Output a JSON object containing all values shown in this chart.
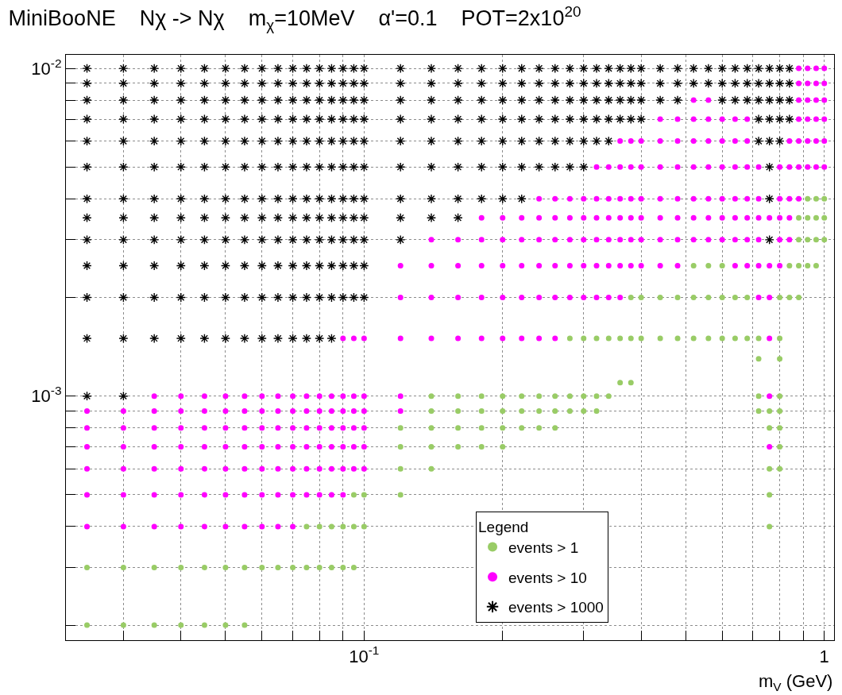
{
  "chart_data": {
    "type": "scatter",
    "title": "MiniBooNE    Nχ -> Nχ    m$_{χ}$=10MeV    α'=0.1    POT=2x10$^{20}$",
    "xlabel": "m$_{V}$ (GeV)",
    "legend_title": "Legend",
    "legend": "bottom",
    "grid": true,
    "log": "xy",
    "xlim": [
      0.0225,
      1.05
    ],
    "ylim": [
      0.00018,
      0.011
    ],
    "xticks": [
      {
        "value": 0.03,
        "label": null
      },
      {
        "value": 0.04,
        "label": null
      },
      {
        "value": 0.05,
        "label": null
      },
      {
        "value": 0.06,
        "label": null
      },
      {
        "value": 0.07,
        "label": null
      },
      {
        "value": 0.08,
        "label": null
      },
      {
        "value": 0.09,
        "label": null
      },
      {
        "value": 0.1,
        "label": "10$^{-1}$"
      },
      {
        "value": 0.2,
        "label": null
      },
      {
        "value": 0.3,
        "label": null
      },
      {
        "value": 0.4,
        "label": null
      },
      {
        "value": 0.5,
        "label": null
      },
      {
        "value": 0.6,
        "label": null
      },
      {
        "value": 0.7,
        "label": null
      },
      {
        "value": 0.8,
        "label": null
      },
      {
        "value": 0.9,
        "label": null
      },
      1
    ],
    "yticks": [
      {
        "value": 0.0002,
        "label": null
      },
      {
        "value": 0.0003,
        "label": null
      },
      {
        "value": 0.0004,
        "label": null
      },
      {
        "value": 0.0005,
        "label": null
      },
      {
        "value": 0.0006,
        "label": null
      },
      {
        "value": 0.0007,
        "label": null
      },
      {
        "value": 0.0008,
        "label": null
      },
      {
        "value": 0.0009,
        "label": null
      },
      {
        "value": 0.001,
        "label": "10$^{-3}$"
      },
      {
        "value": 0.002,
        "label": null
      },
      {
        "value": 0.003,
        "label": null
      },
      {
        "value": 0.004,
        "label": null
      },
      {
        "value": 0.005,
        "label": null
      },
      {
        "value": 0.006,
        "label": null
      },
      {
        "value": 0.007,
        "label": null
      },
      {
        "value": 0.008,
        "label": null
      },
      {
        "value": 0.009,
        "label": null
      },
      {
        "value": 0.01,
        "label": "10$^{-2}$"
      }
    ],
    "series": [
      {
        "name": "events > 1",
        "color": "#99cc66",
        "marker": "circle",
        "x": [
          0.92,
          0.96,
          1.0
        ],
        "values": [
          0.004,
          0.004,
          0.004
        ]
      },
      {
        "color": "#99cc66",
        "marker": "circle",
        "x": [
          0.88,
          0.92,
          0.96,
          1.0
        ],
        "values": [
          0.0035,
          0.0035,
          0.0035,
          0.0035
        ]
      },
      {
        "color": "#99cc66",
        "marker": "circle",
        "x": [
          0.88,
          0.92,
          0.96,
          1.0
        ],
        "values": [
          0.003,
          0.003,
          0.003,
          0.003
        ]
      },
      {
        "color": "#99cc66",
        "marker": "circle",
        "x": [
          0.52,
          0.56,
          0.6,
          0.84,
          0.88,
          0.92,
          0.96
        ],
        "values": [
          0.0025,
          0.0025,
          0.0025,
          0.0025,
          0.0025,
          0.0025,
          0.0025
        ]
      },
      {
        "color": "#99cc66",
        "marker": "circle",
        "x": [
          0.38,
          0.4,
          0.44,
          0.48,
          0.52,
          0.56,
          0.6,
          0.64,
          0.68,
          0.8,
          0.84,
          0.88
        ],
        "values": [
          0.002,
          0.002,
          0.002,
          0.002,
          0.002,
          0.002,
          0.002,
          0.002,
          0.002,
          0.002,
          0.002,
          0.002
        ]
      },
      {
        "color": "#99cc66",
        "marker": "circle",
        "x": [
          0.28,
          0.3,
          0.32,
          0.34,
          0.36,
          0.38,
          0.4,
          0.44,
          0.48,
          0.52,
          0.56,
          0.6,
          0.64,
          0.68,
          0.72,
          0.8
        ],
        "values": [
          0.0015,
          0.0015,
          0.0015,
          0.0015,
          0.0015,
          0.0015,
          0.0015,
          0.0015,
          0.0015,
          0.0015,
          0.0015,
          0.0015,
          0.0015,
          0.0015,
          0.0015,
          0.0015
        ]
      },
      {
        "color": "#99cc66",
        "marker": "circle",
        "x": [
          0.72,
          0.8
        ],
        "values": [
          0.0013,
          0.0013
        ]
      },
      {
        "color": "#99cc66",
        "marker": "circle",
        "x": [
          0.36,
          0.38
        ],
        "values": [
          0.0011,
          0.0011
        ]
      },
      {
        "color": "#99cc66",
        "marker": "circle",
        "x": [
          0.14,
          0.16,
          0.18,
          0.2,
          0.22,
          0.24,
          0.26,
          0.28,
          0.3,
          0.32,
          0.34,
          0.72,
          0.8
        ],
        "values": [
          0.001,
          0.001,
          0.001,
          0.001,
          0.001,
          0.001,
          0.001,
          0.001,
          0.001,
          0.001,
          0.001,
          0.001,
          0.001
        ]
      },
      {
        "color": "#99cc66",
        "marker": "circle",
        "x": [
          0.14,
          0.16,
          0.18,
          0.2,
          0.22,
          0.24,
          0.26,
          0.28,
          0.3,
          0.32,
          0.72,
          0.76,
          0.8
        ],
        "values": [
          0.0009,
          0.0009,
          0.0009,
          0.0009,
          0.0009,
          0.0009,
          0.0009,
          0.0009,
          0.0009,
          0.0009,
          0.0009,
          0.0009,
          0.0009
        ]
      },
      {
        "color": "#99cc66",
        "marker": "circle",
        "x": [
          0.12,
          0.14,
          0.16,
          0.18,
          0.2,
          0.22,
          0.24,
          0.26,
          0.76,
          0.8
        ],
        "values": [
          0.0008,
          0.0008,
          0.0008,
          0.0008,
          0.0008,
          0.0008,
          0.0008,
          0.0008,
          0.0008,
          0.0008
        ]
      },
      {
        "color": "#99cc66",
        "marker": "circle",
        "x": [
          0.12,
          0.14,
          0.16,
          0.18,
          0.2,
          0.8
        ],
        "values": [
          0.0007,
          0.0007,
          0.0007,
          0.0007,
          0.0007,
          0.0007
        ]
      },
      {
        "color": "#99cc66",
        "marker": "circle",
        "x": [
          0.12,
          0.14,
          0.76,
          0.8
        ],
        "values": [
          0.0006,
          0.0006,
          0.0006,
          0.0006
        ]
      },
      {
        "color": "#99cc66",
        "marker": "circle",
        "x": [
          0.095,
          0.1,
          0.12,
          0.76
        ],
        "values": [
          0.0005,
          0.0005,
          0.0005,
          0.0005
        ]
      },
      {
        "color": "#99cc66",
        "marker": "circle",
        "x": [
          0.075,
          0.08,
          0.085,
          0.09,
          0.095,
          0.1,
          0.76
        ],
        "values": [
          0.0004,
          0.0004,
          0.0004,
          0.0004,
          0.0004,
          0.0004,
          0.0004
        ]
      },
      {
        "color": "#99cc66",
        "marker": "circle",
        "x": [
          0.025,
          0.03,
          0.035,
          0.04,
          0.045,
          0.05,
          0.055,
          0.06,
          0.065,
          0.07,
          0.075,
          0.08,
          0.085,
          0.09,
          0.095
        ],
        "values": [
          0.0003,
          0.0003,
          0.0003,
          0.0003,
          0.0003,
          0.0003,
          0.0003,
          0.0003,
          0.0003,
          0.0003,
          0.0003,
          0.0003,
          0.0003,
          0.0003,
          0.0003
        ]
      },
      {
        "color": "#99cc66",
        "marker": "circle",
        "x": [
          0.025,
          0.03,
          0.035,
          0.04,
          0.045,
          0.05,
          0.055
        ],
        "values": [
          0.0002,
          0.0002,
          0.0002,
          0.0002,
          0.0002,
          0.0002,
          0.0002
        ]
      },
      {
        "name": "events > 10",
        "color": "#ff00ff",
        "marker": "circle",
        "x": [
          0.88,
          0.92,
          0.96,
          1.0
        ],
        "values": [
          0.01,
          0.01,
          0.01,
          0.01
        ]
      },
      {
        "color": "#ff00ff",
        "marker": "circle",
        "x": [
          0.88,
          0.92,
          0.96,
          1.0
        ],
        "values": [
          0.009,
          0.009,
          0.009,
          0.009
        ]
      },
      {
        "color": "#ff00ff",
        "marker": "circle",
        "x": [
          0.52,
          0.56,
          0.88,
          0.92,
          0.96,
          1.0
        ],
        "values": [
          0.008,
          0.008,
          0.008,
          0.008,
          0.008,
          0.008
        ]
      },
      {
        "color": "#ff00ff",
        "marker": "circle",
        "x": [
          0.44,
          0.48,
          0.52,
          0.56,
          0.6,
          0.64,
          0.68,
          0.88,
          0.92,
          0.96,
          1.0
        ],
        "values": [
          0.007,
          0.007,
          0.007,
          0.007,
          0.007,
          0.007,
          0.007,
          0.007,
          0.007,
          0.007,
          0.007
        ]
      },
      {
        "color": "#ff00ff",
        "marker": "circle",
        "x": [
          0.36,
          0.38,
          0.4,
          0.44,
          0.48,
          0.52,
          0.56,
          0.6,
          0.64,
          0.68,
          0.84,
          0.88,
          0.92,
          0.96,
          1.0
        ],
        "values": [
          0.006,
          0.006,
          0.006,
          0.006,
          0.006,
          0.006,
          0.006,
          0.006,
          0.006,
          0.006,
          0.006,
          0.006,
          0.006,
          0.006,
          0.006
        ]
      },
      {
        "color": "#ff00ff",
        "marker": "circle",
        "x": [
          0.32,
          0.34,
          0.36,
          0.38,
          0.4,
          0.44,
          0.48,
          0.52,
          0.56,
          0.6,
          0.64,
          0.68,
          0.72,
          0.8,
          0.84,
          0.88,
          0.92,
          0.96,
          1.0
        ],
        "values": [
          0.005,
          0.005,
          0.005,
          0.005,
          0.005,
          0.005,
          0.005,
          0.005,
          0.005,
          0.005,
          0.005,
          0.005,
          0.005,
          0.005,
          0.005,
          0.005,
          0.005,
          0.005,
          0.005
        ]
      },
      {
        "color": "#ff00ff",
        "marker": "circle",
        "x": [
          0.24,
          0.26,
          0.28,
          0.3,
          0.32,
          0.34,
          0.36,
          0.38,
          0.4,
          0.44,
          0.48,
          0.52,
          0.56,
          0.6,
          0.64,
          0.68,
          0.72,
          0.8,
          0.84,
          0.88
        ],
        "values": [
          0.004,
          0.004,
          0.004,
          0.004,
          0.004,
          0.004,
          0.004,
          0.004,
          0.004,
          0.004,
          0.004,
          0.004,
          0.004,
          0.004,
          0.004,
          0.004,
          0.004,
          0.004,
          0.004,
          0.004
        ]
      },
      {
        "color": "#ff00ff",
        "marker": "circle",
        "x": [
          0.18,
          0.2,
          0.22,
          0.24,
          0.26,
          0.28,
          0.3,
          0.32,
          0.34,
          0.36,
          0.38,
          0.4,
          0.44,
          0.48,
          0.52,
          0.56,
          0.6,
          0.64,
          0.68,
          0.72,
          0.76,
          0.8,
          0.84
        ],
        "values": [
          0.0035,
          0.0035,
          0.0035,
          0.0035,
          0.0035,
          0.0035,
          0.0035,
          0.0035,
          0.0035,
          0.0035,
          0.0035,
          0.0035,
          0.0035,
          0.0035,
          0.0035,
          0.0035,
          0.0035,
          0.0035,
          0.0035,
          0.0035,
          0.0035,
          0.0035,
          0.0035
        ]
      },
      {
        "color": "#ff00ff",
        "marker": "circle",
        "x": [
          0.14,
          0.16,
          0.18,
          0.2,
          0.22,
          0.24,
          0.26,
          0.28,
          0.3,
          0.32,
          0.34,
          0.36,
          0.38,
          0.4,
          0.44,
          0.48,
          0.52,
          0.56,
          0.6,
          0.64,
          0.68,
          0.72,
          0.8,
          0.84
        ],
        "values": [
          0.003,
          0.003,
          0.003,
          0.003,
          0.003,
          0.003,
          0.003,
          0.003,
          0.003,
          0.003,
          0.003,
          0.003,
          0.003,
          0.003,
          0.003,
          0.003,
          0.003,
          0.003,
          0.003,
          0.003,
          0.003,
          0.003,
          0.003,
          0.003
        ]
      },
      {
        "color": "#ff00ff",
        "marker": "circle",
        "x": [
          0.12,
          0.14,
          0.16,
          0.18,
          0.2,
          0.22,
          0.24,
          0.26,
          0.28,
          0.3,
          0.32,
          0.34,
          0.36,
          0.38,
          0.4,
          0.44,
          0.48,
          0.64,
          0.68,
          0.72,
          0.76,
          0.8
        ],
        "values": [
          0.0025,
          0.0025,
          0.0025,
          0.0025,
          0.0025,
          0.0025,
          0.0025,
          0.0025,
          0.0025,
          0.0025,
          0.0025,
          0.0025,
          0.0025,
          0.0025,
          0.0025,
          0.0025,
          0.0025,
          0.0025,
          0.0025,
          0.0025,
          0.0025,
          0.0025
        ]
      },
      {
        "color": "#ff00ff",
        "marker": "circle",
        "x": [
          0.12,
          0.14,
          0.16,
          0.18,
          0.2,
          0.22,
          0.24,
          0.26,
          0.28,
          0.3,
          0.32,
          0.34,
          0.36,
          0.72,
          0.76
        ],
        "values": [
          0.002,
          0.002,
          0.002,
          0.002,
          0.002,
          0.002,
          0.002,
          0.002,
          0.002,
          0.002,
          0.002,
          0.002,
          0.002,
          0.002,
          0.002
        ]
      },
      {
        "color": "#ff00ff",
        "marker": "circle",
        "x": [
          0.09,
          0.095,
          0.1,
          0.12,
          0.14,
          0.16,
          0.18,
          0.2,
          0.22,
          0.24,
          0.26,
          0.76
        ],
        "values": [
          0.0015,
          0.0015,
          0.0015,
          0.0015,
          0.0015,
          0.0015,
          0.0015,
          0.0015,
          0.0015,
          0.0015,
          0.0015,
          0.0015
        ]
      },
      {
        "color": "#ff00ff",
        "marker": "circle",
        "x": [
          0.035,
          0.04,
          0.045,
          0.05,
          0.055,
          0.06,
          0.065,
          0.07,
          0.075,
          0.08,
          0.085,
          0.09,
          0.095,
          0.1,
          0.12,
          0.76
        ],
        "values": [
          0.001,
          0.001,
          0.001,
          0.001,
          0.001,
          0.001,
          0.001,
          0.001,
          0.001,
          0.001,
          0.001,
          0.001,
          0.001,
          0.001,
          0.001,
          0.001
        ]
      },
      {
        "color": "#ff00ff",
        "marker": "circle",
        "x": [
          0.025,
          0.03,
          0.035,
          0.04,
          0.045,
          0.05,
          0.055,
          0.06,
          0.065,
          0.07,
          0.075,
          0.08,
          0.085,
          0.09,
          0.095,
          0.1,
          0.12
        ],
        "values": [
          0.0009,
          0.0009,
          0.0009,
          0.0009,
          0.0009,
          0.0009,
          0.0009,
          0.0009,
          0.0009,
          0.0009,
          0.0009,
          0.0009,
          0.0009,
          0.0009,
          0.0009,
          0.0009,
          0.0009
        ]
      },
      {
        "color": "#ff00ff",
        "marker": "circle",
        "x": [
          0.025,
          0.03,
          0.035,
          0.04,
          0.045,
          0.05,
          0.055,
          0.06,
          0.065,
          0.07,
          0.075,
          0.08,
          0.085,
          0.09,
          0.095,
          0.1
        ],
        "values": [
          0.0008,
          0.0008,
          0.0008,
          0.0008,
          0.0008,
          0.0008,
          0.0008,
          0.0008,
          0.0008,
          0.0008,
          0.0008,
          0.0008,
          0.0008,
          0.0008,
          0.0008,
          0.0008
        ]
      },
      {
        "color": "#ff00ff",
        "marker": "circle",
        "x": [
          0.025,
          0.03,
          0.035,
          0.04,
          0.045,
          0.05,
          0.055,
          0.06,
          0.065,
          0.07,
          0.075,
          0.08,
          0.085,
          0.09,
          0.095,
          0.1,
          0.76
        ],
        "values": [
          0.0007,
          0.0007,
          0.0007,
          0.0007,
          0.0007,
          0.0007,
          0.0007,
          0.0007,
          0.0007,
          0.0007,
          0.0007,
          0.0007,
          0.0007,
          0.0007,
          0.0007,
          0.0007,
          0.0007
        ]
      },
      {
        "color": "#ff00ff",
        "marker": "circle",
        "x": [
          0.025,
          0.03,
          0.035,
          0.04,
          0.045,
          0.05,
          0.055,
          0.06,
          0.065,
          0.07,
          0.075,
          0.08,
          0.085,
          0.09,
          0.095,
          0.1
        ],
        "values": [
          0.0006,
          0.0006,
          0.0006,
          0.0006,
          0.0006,
          0.0006,
          0.0006,
          0.0006,
          0.0006,
          0.0006,
          0.0006,
          0.0006,
          0.0006,
          0.0006,
          0.0006,
          0.0006
        ]
      },
      {
        "color": "#ff00ff",
        "marker": "circle",
        "x": [
          0.025,
          0.03,
          0.035,
          0.04,
          0.045,
          0.05,
          0.055,
          0.06,
          0.065,
          0.07,
          0.075,
          0.08,
          0.085,
          0.09
        ],
        "values": [
          0.0005,
          0.0005,
          0.0005,
          0.0005,
          0.0005,
          0.0005,
          0.0005,
          0.0005,
          0.0005,
          0.0005,
          0.0005,
          0.0005,
          0.0005,
          0.0005
        ]
      },
      {
        "color": "#ff00ff",
        "marker": "circle",
        "x": [
          0.025,
          0.03,
          0.035,
          0.04,
          0.045,
          0.05,
          0.055,
          0.06,
          0.065,
          0.07
        ],
        "values": [
          0.0004,
          0.0004,
          0.0004,
          0.0004,
          0.0004,
          0.0004,
          0.0004,
          0.0004,
          0.0004,
          0.0004
        ]
      },
      {
        "name": "events > 1000",
        "color": "#000000",
        "marker": "cross",
        "x": [
          0.025,
          0.03,
          0.035,
          0.04,
          0.045,
          0.05,
          0.055,
          0.06,
          0.065,
          0.07,
          0.075,
          0.08,
          0.085,
          0.09,
          0.095,
          0.1,
          0.12,
          0.14,
          0.16,
          0.18,
          0.2,
          0.22,
          0.24,
          0.26,
          0.28,
          0.3,
          0.32,
          0.34,
          0.36,
          0.38,
          0.4,
          0.44,
          0.48,
          0.52,
          0.56,
          0.6,
          0.64,
          0.68,
          0.72,
          0.76,
          0.8,
          0.84
        ],
        "values": [
          0.01,
          0.01,
          0.01,
          0.01,
          0.01,
          0.01,
          0.01,
          0.01,
          0.01,
          0.01,
          0.01,
          0.01,
          0.01,
          0.01,
          0.01,
          0.01,
          0.01,
          0.01,
          0.01,
          0.01,
          0.01,
          0.01,
          0.01,
          0.01,
          0.01,
          0.01,
          0.01,
          0.01,
          0.01,
          0.01,
          0.01,
          0.01,
          0.01,
          0.01,
          0.01,
          0.01,
          0.01,
          0.01,
          0.01,
          0.01,
          0.01,
          0.01
        ]
      },
      {
        "color": "#000000",
        "marker": "cross",
        "x": [
          0.025,
          0.03,
          0.035,
          0.04,
          0.045,
          0.05,
          0.055,
          0.06,
          0.065,
          0.07,
          0.075,
          0.08,
          0.085,
          0.09,
          0.095,
          0.1,
          0.12,
          0.14,
          0.16,
          0.18,
          0.2,
          0.22,
          0.24,
          0.26,
          0.28,
          0.3,
          0.32,
          0.34,
          0.36,
          0.38,
          0.4,
          0.44,
          0.48,
          0.52,
          0.56,
          0.6,
          0.64,
          0.68,
          0.72,
          0.76,
          0.8,
          0.84
        ],
        "values": [
          0.009,
          0.009,
          0.009,
          0.009,
          0.009,
          0.009,
          0.009,
          0.009,
          0.009,
          0.009,
          0.009,
          0.009,
          0.009,
          0.009,
          0.009,
          0.009,
          0.009,
          0.009,
          0.009,
          0.009,
          0.009,
          0.009,
          0.009,
          0.009,
          0.009,
          0.009,
          0.009,
          0.009,
          0.009,
          0.009,
          0.009,
          0.009,
          0.009,
          0.009,
          0.009,
          0.009,
          0.009,
          0.009,
          0.009,
          0.009,
          0.009,
          0.009
        ]
      },
      {
        "color": "#000000",
        "marker": "cross",
        "x": [
          0.025,
          0.03,
          0.035,
          0.04,
          0.045,
          0.05,
          0.055,
          0.06,
          0.065,
          0.07,
          0.075,
          0.08,
          0.085,
          0.09,
          0.095,
          0.1,
          0.12,
          0.14,
          0.16,
          0.18,
          0.2,
          0.22,
          0.24,
          0.26,
          0.28,
          0.3,
          0.32,
          0.34,
          0.36,
          0.38,
          0.4,
          0.44,
          0.48,
          0.6,
          0.64,
          0.68,
          0.72,
          0.76,
          0.8,
          0.84
        ],
        "values": [
          0.008,
          0.008,
          0.008,
          0.008,
          0.008,
          0.008,
          0.008,
          0.008,
          0.008,
          0.008,
          0.008,
          0.008,
          0.008,
          0.008,
          0.008,
          0.008,
          0.008,
          0.008,
          0.008,
          0.008,
          0.008,
          0.008,
          0.008,
          0.008,
          0.008,
          0.008,
          0.008,
          0.008,
          0.008,
          0.008,
          0.008,
          0.008,
          0.008,
          0.008,
          0.008,
          0.008,
          0.008,
          0.008,
          0.008,
          0.008
        ]
      },
      {
        "color": "#000000",
        "marker": "cross",
        "x": [
          0.025,
          0.03,
          0.035,
          0.04,
          0.045,
          0.05,
          0.055,
          0.06,
          0.065,
          0.07,
          0.075,
          0.08,
          0.085,
          0.09,
          0.095,
          0.1,
          0.12,
          0.14,
          0.16,
          0.18,
          0.2,
          0.22,
          0.24,
          0.26,
          0.28,
          0.3,
          0.32,
          0.34,
          0.36,
          0.38,
          0.4,
          0.72,
          0.76,
          0.8,
          0.84
        ],
        "values": [
          0.007,
          0.007,
          0.007,
          0.007,
          0.007,
          0.007,
          0.007,
          0.007,
          0.007,
          0.007,
          0.007,
          0.007,
          0.007,
          0.007,
          0.007,
          0.007,
          0.007,
          0.007,
          0.007,
          0.007,
          0.007,
          0.007,
          0.007,
          0.007,
          0.007,
          0.007,
          0.007,
          0.007,
          0.007,
          0.007,
          0.007,
          0.007,
          0.007,
          0.007,
          0.007
        ]
      },
      {
        "color": "#000000",
        "marker": "cross",
        "x": [
          0.025,
          0.03,
          0.035,
          0.04,
          0.045,
          0.05,
          0.055,
          0.06,
          0.065,
          0.07,
          0.075,
          0.08,
          0.085,
          0.09,
          0.095,
          0.1,
          0.12,
          0.14,
          0.16,
          0.18,
          0.2,
          0.22,
          0.24,
          0.26,
          0.28,
          0.3,
          0.32,
          0.34,
          0.72,
          0.76,
          0.8
        ],
        "values": [
          0.006,
          0.006,
          0.006,
          0.006,
          0.006,
          0.006,
          0.006,
          0.006,
          0.006,
          0.006,
          0.006,
          0.006,
          0.006,
          0.006,
          0.006,
          0.006,
          0.006,
          0.006,
          0.006,
          0.006,
          0.006,
          0.006,
          0.006,
          0.006,
          0.006,
          0.006,
          0.006,
          0.006,
          0.006,
          0.006,
          0.006
        ]
      },
      {
        "color": "#000000",
        "marker": "cross",
        "x": [
          0.025,
          0.03,
          0.035,
          0.04,
          0.045,
          0.05,
          0.055,
          0.06,
          0.065,
          0.07,
          0.075,
          0.08,
          0.085,
          0.09,
          0.095,
          0.1,
          0.12,
          0.14,
          0.16,
          0.18,
          0.2,
          0.22,
          0.24,
          0.26,
          0.28,
          0.3,
          0.76
        ],
        "values": [
          0.005,
          0.005,
          0.005,
          0.005,
          0.005,
          0.005,
          0.005,
          0.005,
          0.005,
          0.005,
          0.005,
          0.005,
          0.005,
          0.005,
          0.005,
          0.005,
          0.005,
          0.005,
          0.005,
          0.005,
          0.005,
          0.005,
          0.005,
          0.005,
          0.005,
          0.005,
          0.005
        ]
      },
      {
        "color": "#000000",
        "marker": "cross",
        "x": [
          0.025,
          0.03,
          0.035,
          0.04,
          0.045,
          0.05,
          0.055,
          0.06,
          0.065,
          0.07,
          0.075,
          0.08,
          0.085,
          0.09,
          0.095,
          0.1,
          0.12,
          0.14,
          0.16,
          0.18,
          0.2,
          0.22,
          0.76
        ],
        "values": [
          0.004,
          0.004,
          0.004,
          0.004,
          0.004,
          0.004,
          0.004,
          0.004,
          0.004,
          0.004,
          0.004,
          0.004,
          0.004,
          0.004,
          0.004,
          0.004,
          0.004,
          0.004,
          0.004,
          0.004,
          0.004,
          0.004,
          0.004
        ]
      },
      {
        "color": "#000000",
        "marker": "cross",
        "x": [
          0.025,
          0.03,
          0.035,
          0.04,
          0.045,
          0.05,
          0.055,
          0.06,
          0.065,
          0.07,
          0.075,
          0.08,
          0.085,
          0.09,
          0.095,
          0.1,
          0.12,
          0.14,
          0.16
        ],
        "values": [
          0.0035,
          0.0035,
          0.0035,
          0.0035,
          0.0035,
          0.0035,
          0.0035,
          0.0035,
          0.0035,
          0.0035,
          0.0035,
          0.0035,
          0.0035,
          0.0035,
          0.0035,
          0.0035,
          0.0035,
          0.0035,
          0.0035
        ]
      },
      {
        "color": "#000000",
        "marker": "cross",
        "x": [
          0.025,
          0.03,
          0.035,
          0.04,
          0.045,
          0.05,
          0.055,
          0.06,
          0.065,
          0.07,
          0.075,
          0.08,
          0.085,
          0.09,
          0.095,
          0.1,
          0.12,
          0.76
        ],
        "values": [
          0.003,
          0.003,
          0.003,
          0.003,
          0.003,
          0.003,
          0.003,
          0.003,
          0.003,
          0.003,
          0.003,
          0.003,
          0.003,
          0.003,
          0.003,
          0.003,
          0.003,
          0.003
        ]
      },
      {
        "color": "#000000",
        "marker": "cross",
        "x": [
          0.025,
          0.03,
          0.035,
          0.04,
          0.045,
          0.05,
          0.055,
          0.06,
          0.065,
          0.07,
          0.075,
          0.08,
          0.085,
          0.09,
          0.095,
          0.1
        ],
        "values": [
          0.0025,
          0.0025,
          0.0025,
          0.0025,
          0.0025,
          0.0025,
          0.0025,
          0.0025,
          0.0025,
          0.0025,
          0.0025,
          0.0025,
          0.0025,
          0.0025,
          0.0025,
          0.0025
        ]
      },
      {
        "color": "#000000",
        "marker": "cross",
        "x": [
          0.025,
          0.03,
          0.035,
          0.04,
          0.045,
          0.05,
          0.055,
          0.06,
          0.065,
          0.07,
          0.075,
          0.08,
          0.085,
          0.09,
          0.095,
          0.1
        ],
        "values": [
          0.002,
          0.002,
          0.002,
          0.002,
          0.002,
          0.002,
          0.002,
          0.002,
          0.002,
          0.002,
          0.002,
          0.002,
          0.002,
          0.002,
          0.002,
          0.002
        ]
      },
      {
        "color": "#000000",
        "marker": "cross",
        "x": [
          0.025,
          0.03,
          0.035,
          0.04,
          0.045,
          0.05,
          0.055,
          0.06,
          0.065,
          0.07,
          0.075,
          0.08,
          0.085
        ],
        "values": [
          0.0015,
          0.0015,
          0.0015,
          0.0015,
          0.0015,
          0.0015,
          0.0015,
          0.0015,
          0.0015,
          0.0015,
          0.0015,
          0.0015,
          0.0015
        ]
      },
      {
        "color": "#000000",
        "marker": "cross",
        "x": [
          0.025,
          0.03
        ],
        "values": [
          0.001,
          0.001
        ]
      }
    ]
  }
}
